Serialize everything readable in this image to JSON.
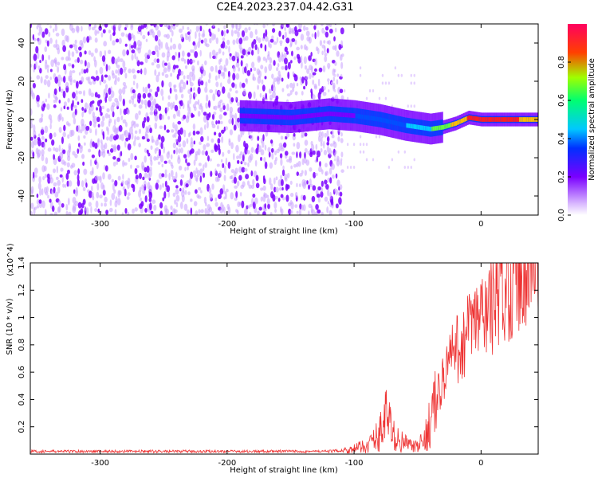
{
  "title": "C2E4.2023.237.04.42.G31",
  "chart_data": [
    {
      "type": "heatmap",
      "xlabel": "Height of straight line (km)",
      "ylabel": "Frequency (Hz)",
      "xlim": [
        -355,
        45
      ],
      "ylim": [
        -50,
        50
      ],
      "x_ticks": [
        -300,
        -200,
        -100,
        0
      ],
      "y_ticks": [
        -40,
        -20,
        0,
        20,
        40
      ],
      "colorbar": {
        "label": "Normalized spectral amplitude",
        "range": [
          0,
          1
        ],
        "ticks": [
          0.0,
          0.2,
          0.4,
          0.6,
          0.8
        ],
        "colors": [
          "#ffffff",
          "#d9b8ff",
          "#7a00ff",
          "#0030ff",
          "#00c8ff",
          "#00ff70",
          "#a0ff00",
          "#ffd000",
          "#ff4000",
          "#ff0060"
        ]
      },
      "ridge": {
        "x": [
          -190,
          -150,
          -120,
          -100,
          -80,
          -60,
          -50,
          -40,
          -30,
          -20,
          -10,
          0,
          20,
          45
        ],
        "freq": [
          2,
          1,
          3,
          2,
          0,
          -3,
          -4,
          -5,
          -4,
          -2,
          1,
          0,
          0,
          0
        ],
        "amplitude": [
          0.3,
          0.3,
          0.35,
          0.4,
          0.45,
          0.5,
          0.55,
          0.6,
          0.7,
          0.8,
          0.9,
          0.95,
          0.9,
          0.85
        ]
      },
      "grid": false
    },
    {
      "type": "line",
      "xlabel": "Height of straight line (km)",
      "ylabel": "SNR (10 * v/v)",
      "scale_note": "(x10^4)",
      "xlim": [
        -355,
        45
      ],
      "ylim": [
        0,
        1.4
      ],
      "x_ticks": [
        -300,
        -200,
        -100,
        0
      ],
      "y_ticks": [
        0.2,
        0.4,
        0.6,
        0.8,
        1.0,
        1.2,
        1.4
      ],
      "series": [
        {
          "color": "#ee3333",
          "x": [
            -355,
            -300,
            -250,
            -200,
            -150,
            -120,
            -105,
            -95,
            -90,
            -85,
            -80,
            -75,
            -70,
            -65,
            -60,
            -55,
            -50,
            -45,
            -40,
            -35,
            -30,
            -25,
            -20,
            -15,
            -10,
            -5,
            0,
            5,
            10,
            15,
            20,
            25,
            30,
            35,
            40,
            45
          ],
          "y": [
            0.02,
            0.02,
            0.02,
            0.02,
            0.02,
            0.02,
            0.03,
            0.05,
            0.06,
            0.1,
            0.15,
            0.3,
            0.15,
            0.1,
            0.08,
            0.06,
            0.05,
            0.1,
            0.25,
            0.4,
            0.55,
            0.7,
            0.75,
            0.8,
            0.9,
            0.95,
            1.0,
            1.05,
            1.1,
            1.2,
            1.25,
            1.3,
            1.35,
            1.36,
            1.38,
            1.4
          ]
        }
      ],
      "grid": false
    }
  ]
}
